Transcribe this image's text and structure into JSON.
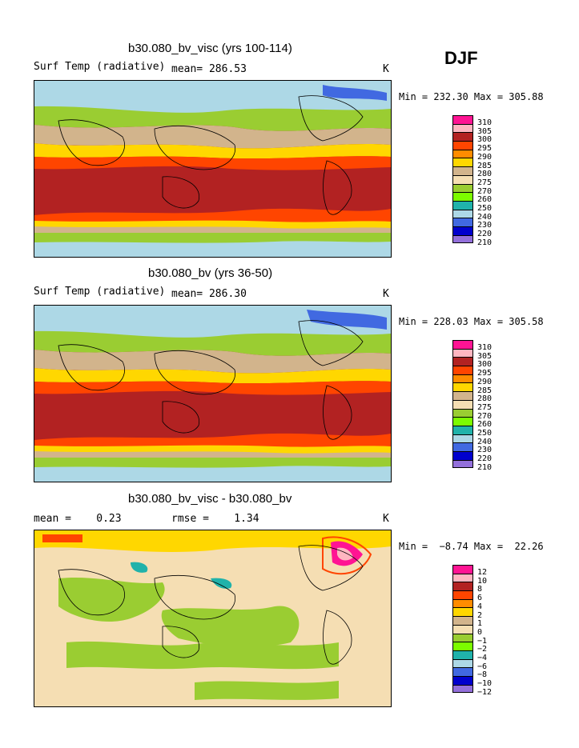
{
  "season": "DJF",
  "panels": [
    {
      "title": "b30.080_bv_visc (yrs 100-114)",
      "field": "Surf Temp (radiative)",
      "stat_text": "mean= 286.53",
      "units": "K",
      "minmax": "Min = 232.30 Max = 305.88",
      "legend_labels": [
        "310",
        "305",
        "300",
        "295",
        "290",
        "285",
        "280",
        "275",
        "270",
        "260",
        "250",
        "240",
        "230",
        "220",
        "210"
      ]
    },
    {
      "title": "b30.080_bv (yrs 36-50)",
      "field": "Surf Temp (radiative)",
      "stat_text": "mean= 286.30",
      "units": "K",
      "minmax": "Min = 228.03 Max = 305.58",
      "legend_labels": [
        "310",
        "305",
        "300",
        "295",
        "290",
        "285",
        "280",
        "275",
        "270",
        "260",
        "250",
        "240",
        "230",
        "220",
        "210"
      ]
    },
    {
      "title": "b30.080_bv_visc - b30.080_bv",
      "field": "mean =    0.23",
      "stat_text": "rmse =    1.34",
      "units": "K",
      "minmax": "Min =  −8.74 Max =  22.26",
      "legend_labels": [
        "12",
        "10",
        "8",
        "6",
        "4",
        "2",
        "1",
        "0",
        "−1",
        "−2",
        "−4",
        "−6",
        "−8",
        "−10",
        "−12"
      ]
    }
  ],
  "colors": {
    "palette": [
      "#ff1493",
      "#ffb6c1",
      "#b22222",
      "#ff4500",
      "#ff8c00",
      "#ffd700",
      "#d2b48c",
      "#f5deb3",
      "#9acd32",
      "#7cfc00",
      "#20b2aa",
      "#add8e6",
      "#4169e1",
      "#0000cd",
      "#9370db"
    ],
    "ocean_dark_red": "#b22222",
    "ocean_orange": "#ff4500",
    "ice": "#add8e6"
  }
}
